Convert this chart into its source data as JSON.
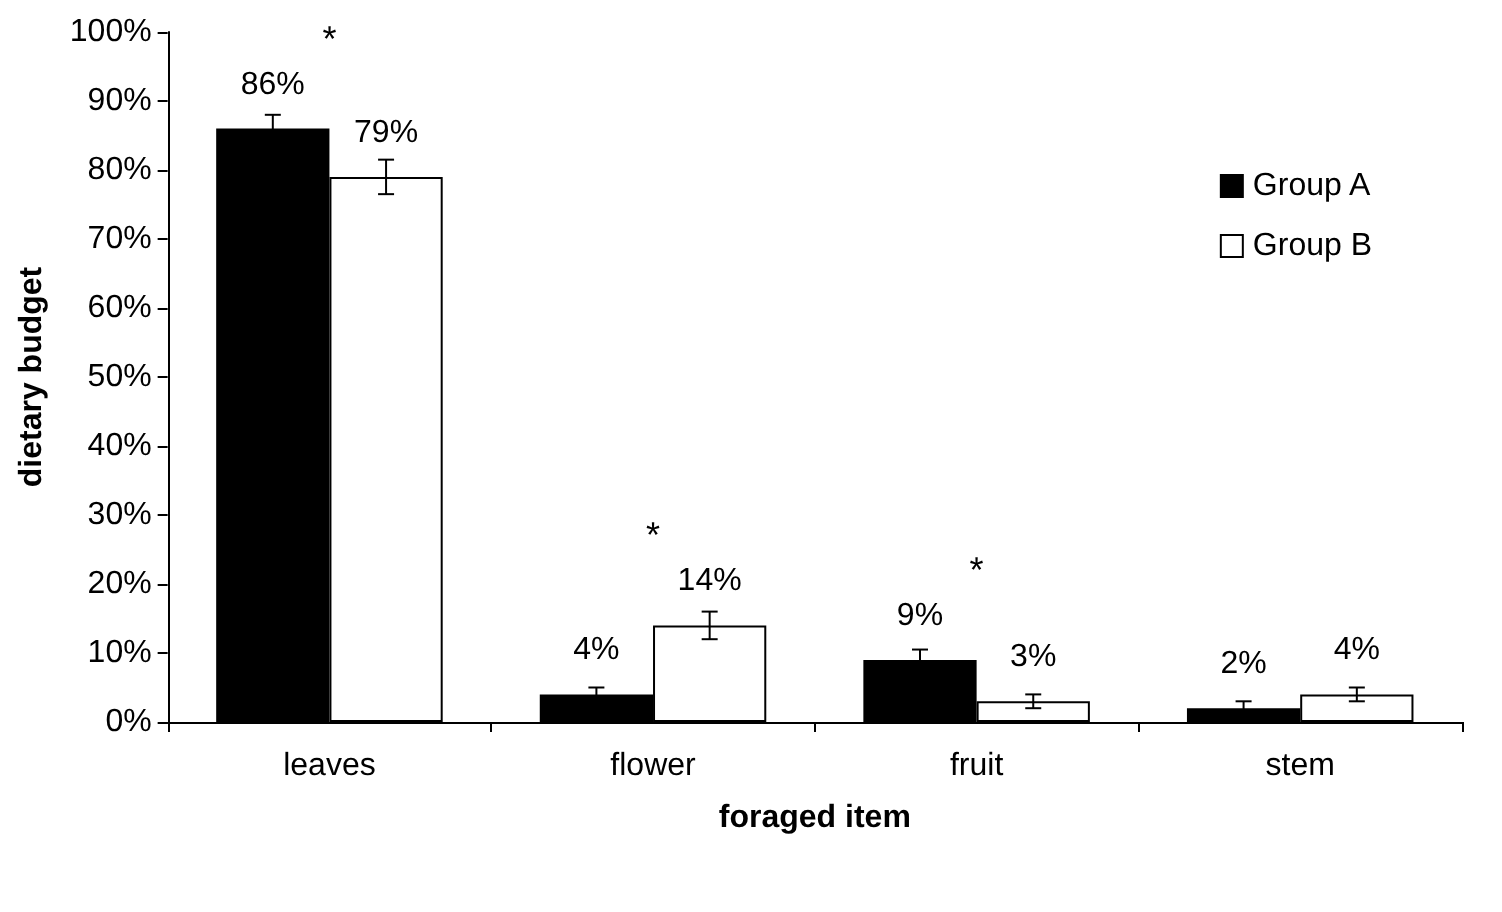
{
  "chart_data": {
    "type": "bar",
    "xlabel": "foraged item",
    "ylabel": "dietary budget",
    "categories": [
      "leaves",
      "flower",
      "fruit",
      "stem"
    ],
    "series": [
      {
        "name": "Group A",
        "color": "#000000",
        "values": [
          86,
          4,
          9,
          2
        ],
        "errors": [
          2,
          1,
          1.5,
          1
        ],
        "value_labels": [
          "86%",
          "4%",
          "9%",
          "2%"
        ]
      },
      {
        "name": "Group B",
        "color": "#ffffff",
        "values": [
          79,
          14,
          3,
          4
        ],
        "errors": [
          2.5,
          2,
          1,
          1
        ],
        "value_labels": [
          "79%",
          "14%",
          "3%",
          "4%"
        ]
      }
    ],
    "ylim": [
      0,
      100
    ],
    "yticks": [
      {
        "value": 0,
        "label": "0%"
      },
      {
        "value": 10,
        "label": "10%"
      },
      {
        "value": 20,
        "label": "20%"
      },
      {
        "value": 30,
        "label": "30%"
      },
      {
        "value": 40,
        "label": "40%"
      },
      {
        "value": 50,
        "label": "50%"
      },
      {
        "value": 60,
        "label": "60%"
      },
      {
        "value": 70,
        "label": "70%"
      },
      {
        "value": 80,
        "label": "80%"
      },
      {
        "value": 90,
        "label": "90%"
      },
      {
        "value": 100,
        "label": "100%"
      }
    ],
    "annotations": [
      "*",
      "*",
      "*"
    ],
    "grid": false,
    "legend": "top right"
  }
}
